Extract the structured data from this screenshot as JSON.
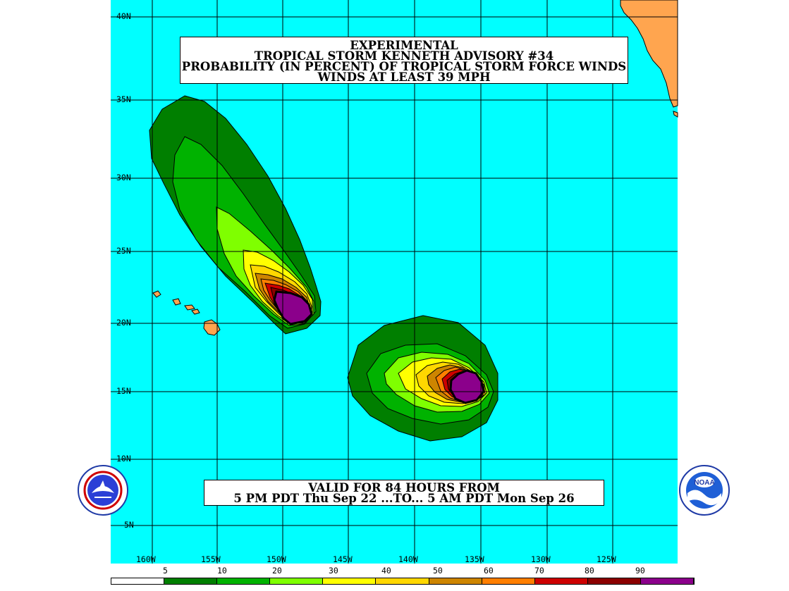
{
  "title": {
    "line1": "EXPERIMENTAL",
    "line2": "TROPICAL STORM KENNETH ADVISORY #34",
    "line3": "PROBABILITY (IN PERCENT) OF TROPICAL STORM FORCE WINDS",
    "line4": "WINDS AT LEAST 39 MPH"
  },
  "valid": {
    "line1": "VALID FOR 84 HOURS FROM",
    "line2": "5 PM PDT Thu Sep 22 ...TO... 5 AM PDT Mon Sep 26"
  },
  "lat_labels": [
    "40N",
    "35N",
    "30N",
    "25N",
    "20N",
    "15N",
    "10N",
    "5N"
  ],
  "lon_labels": [
    "160W",
    "155W",
    "150W",
    "145W",
    "140W",
    "135W",
    "130W",
    "125W"
  ],
  "legend": {
    "labels": [
      "5",
      "10",
      "20",
      "30",
      "40",
      "50",
      "60",
      "70",
      "80",
      "90"
    ],
    "colors": [
      "#ffffff",
      "#007f00",
      "#00b200",
      "#7fff00",
      "#ffff00",
      "#ffd700",
      "#cd8500",
      "#ff7f00",
      "#cd0000",
      "#8b0000",
      "#8b008b"
    ]
  },
  "colors": {
    "ocean": "#00ffff",
    "land": "#ffa54f",
    "grid": "#000000"
  },
  "logos": {
    "left": "nws-logo-icon",
    "right": "noaa-logo-icon"
  }
}
